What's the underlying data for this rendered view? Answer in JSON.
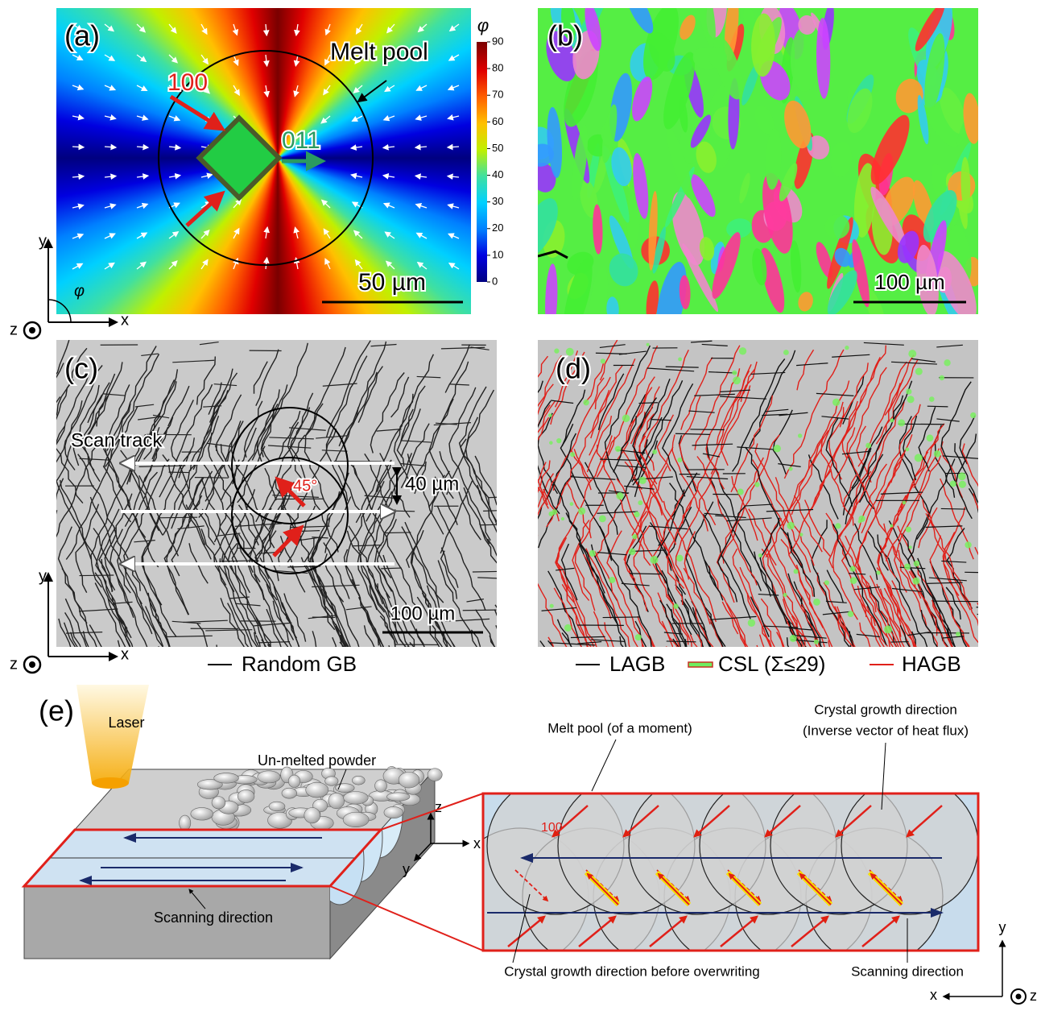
{
  "panel_a": {
    "label": "(a)",
    "melt_pool": "Melt pool",
    "direction_100": "100",
    "direction_011": "011",
    "scale_bar": "50 µm",
    "colorbar": {
      "title": "φ",
      "ticks": [
        0,
        10,
        20,
        30,
        40,
        50,
        60,
        70,
        80,
        90
      ]
    }
  },
  "axes_ab": {
    "y": "y",
    "x": "x",
    "z": "z",
    "angle": "φ"
  },
  "panel_b": {
    "label": "(b)",
    "scale_bar": "100 µm"
  },
  "panel_c": {
    "label": "(c)",
    "scan_track": "Scan track",
    "angle": "45°",
    "spacing": "40 µm",
    "scale_bar": "100 µm",
    "legend": [
      "Random GB"
    ]
  },
  "axes_c": {
    "y": "y",
    "x": "x",
    "z": "z"
  },
  "panel_d": {
    "label": "(d)",
    "legend": [
      "LAGB",
      "CSL (Σ≤29)",
      "HAGB"
    ]
  },
  "panel_e": {
    "label": "(e)",
    "laser": "Laser",
    "powder": "Un-melted powder",
    "scanning_direction_3d": "Scanning direction",
    "axes_3d": {
      "z": "z",
      "x": "x",
      "y": "y"
    },
    "melt_pool": "Melt pool (of a moment)",
    "growth_direction": "Crystal growth direction",
    "growth_note": "(Inverse vector of heat flux)",
    "direction_100": "100",
    "before_overwriting": "Crystal growth direction before overwriting",
    "scanning_direction": "Scanning direction",
    "axes": {
      "y": "y",
      "x": "x",
      "z": "z"
    }
  }
}
